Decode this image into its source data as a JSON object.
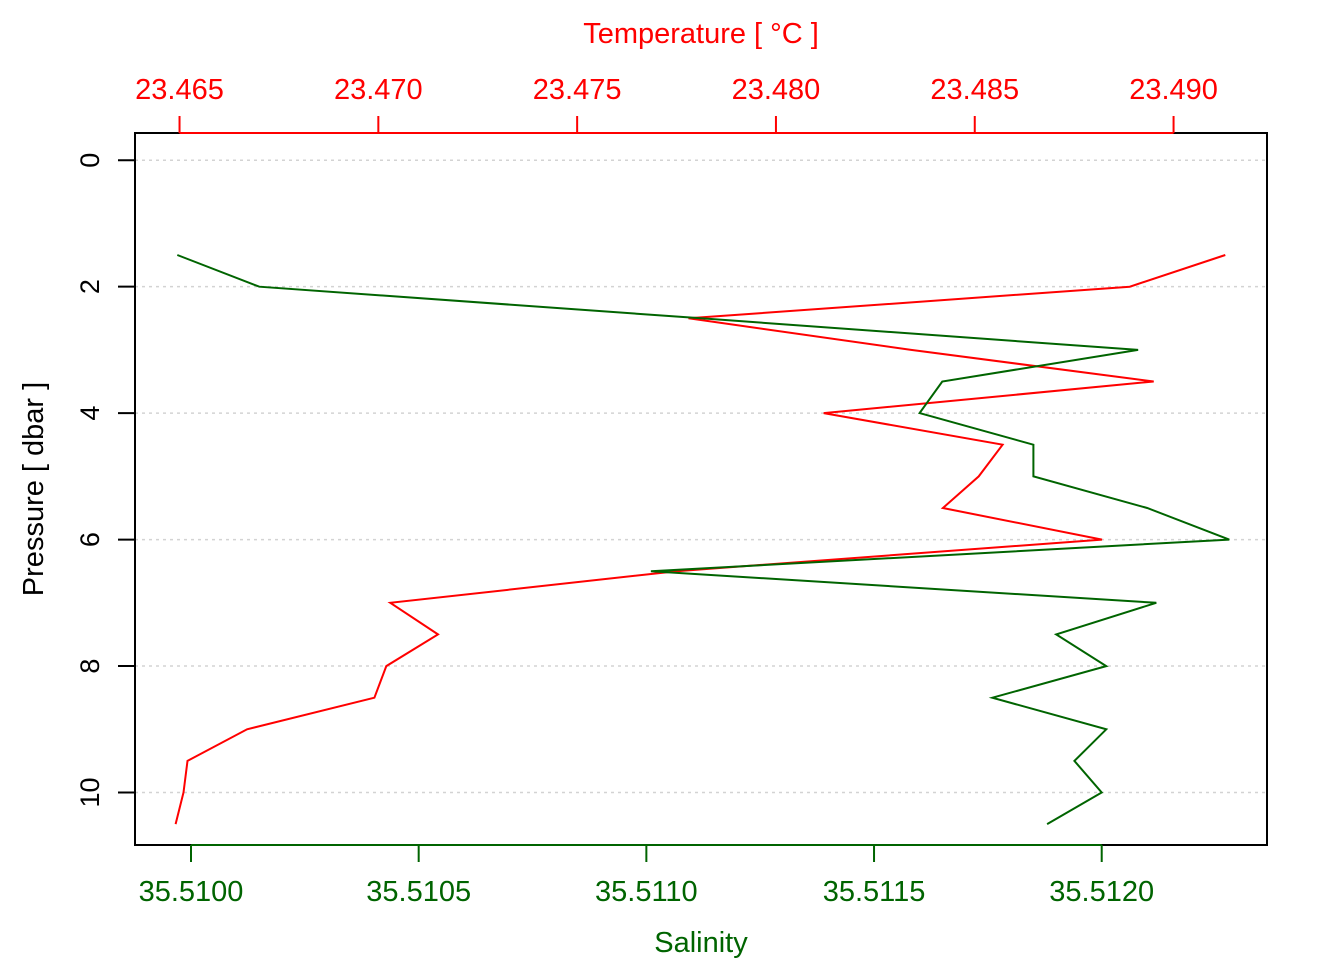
{
  "chart_data": {
    "type": "line",
    "xlabel_top": "Temperature [ °C ]",
    "xlabel_bottom": "Salinity",
    "ylabel": "Pressure [ dbar ]",
    "y_reversed": true,
    "grid": "horizontal dotted at y ticks",
    "ylim": [
      10.83,
      -0.43
    ],
    "y_ticks": [
      0,
      2,
      4,
      6,
      8,
      10
    ],
    "x_top_ticks": [
      23.465,
      23.47,
      23.475,
      23.48,
      23.485,
      23.49
    ],
    "x_top_tick_labels": [
      "23.465",
      "23.470",
      "23.475",
      "23.480",
      "23.485",
      "23.490"
    ],
    "x_top_lim": [
      23.46388,
      23.49235
    ],
    "x_bottom_ticks": [
      35.51,
      35.5105,
      35.511,
      35.5115,
      35.512
    ],
    "x_bottom_tick_labels": [
      "35.5100",
      "35.5105",
      "35.5110",
      "35.5115",
      "35.5120"
    ],
    "x_bottom_lim": [
      35.509877,
      35.512363
    ],
    "colors": {
      "temperature": "#ff0000",
      "salinity": "#006400",
      "grid": "#d3d3d3",
      "axis": "#000000"
    },
    "series": [
      {
        "key": "temperature",
        "axis": "top",
        "pressure": [
          1.5,
          2.0,
          2.5,
          3.0,
          3.5,
          4.0,
          4.5,
          5.0,
          5.5,
          6.0,
          6.5,
          7.0,
          7.5,
          8.0,
          8.5,
          9.0,
          9.5,
          10.0,
          10.5
        ],
        "values": [
          23.4913,
          23.4889,
          23.4778,
          23.4834,
          23.4895,
          23.4812,
          23.4857,
          23.4851,
          23.4842,
          23.4882,
          23.4775,
          23.4703,
          23.4715,
          23.4702,
          23.4699,
          23.4667,
          23.4652,
          23.4651,
          23.4649
        ]
      },
      {
        "key": "salinity",
        "axis": "bottom",
        "pressure": [
          1.5,
          2.0,
          2.5,
          3.0,
          3.5,
          4.0,
          4.5,
          5.0,
          5.5,
          6.0,
          6.5,
          7.0,
          7.5,
          8.0,
          8.5,
          9.0,
          9.5,
          10.0,
          10.5
        ],
        "values": [
          35.50997,
          35.51015,
          35.51112,
          35.51208,
          35.51165,
          35.5116,
          35.51185,
          35.51185,
          35.5121,
          35.51228,
          35.51101,
          35.51212,
          35.5119,
          35.51201,
          35.51176,
          35.51201,
          35.51194,
          35.512,
          35.51188
        ]
      }
    ]
  }
}
